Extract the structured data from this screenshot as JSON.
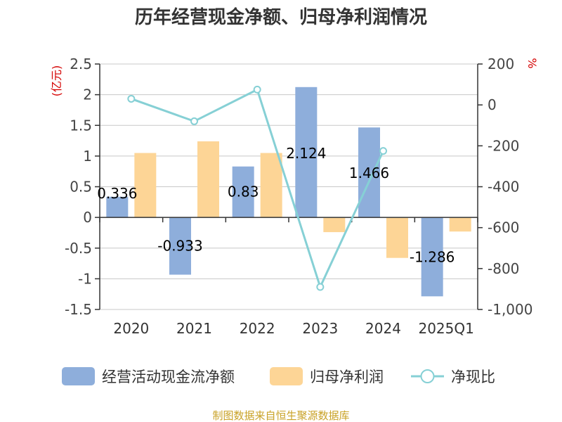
{
  "title": "历年经营现金净额、归母净利润情况",
  "source": "制图数据来自恒生聚源数据库",
  "chart_data": {
    "type": "bar",
    "categories": [
      "2020",
      "2021",
      "2022",
      "2023",
      "2024",
      "2025Q1"
    ],
    "left_axis": {
      "unit": "(亿元)",
      "ylim": [
        -1.5,
        2.5
      ],
      "ticks": [
        2.5,
        2,
        1.5,
        1,
        0.5,
        0,
        -0.5,
        -1,
        -1.5
      ],
      "tick_labels": [
        "2.5",
        "2",
        "1.5",
        "1",
        "0.5",
        "0",
        "-0.5",
        "-1",
        "-1.5"
      ]
    },
    "right_axis": {
      "unit": "%",
      "ylim": [
        -1000,
        200
      ],
      "ticks": [
        200,
        0,
        -200,
        -400,
        -600,
        -800,
        -1000
      ],
      "tick_labels": [
        "200",
        "0",
        "-200",
        "-400",
        "-600",
        "-800",
        "-1,000"
      ]
    },
    "grid": true,
    "legend_position": "bottom",
    "series": [
      {
        "name": "经营活动现金流净额",
        "kind": "bar",
        "axis": "left",
        "color": "#8eaedb",
        "values": [
          0.336,
          -0.933,
          0.83,
          2.124,
          1.466,
          -1.286
        ],
        "labels": [
          "0.336",
          "-0.933",
          "0.83",
          "2.124",
          "1.466",
          "-1.286"
        ]
      },
      {
        "name": "归母净利润",
        "kind": "bar",
        "axis": "left",
        "color": "#fdd596",
        "values": [
          1.05,
          1.24,
          1.05,
          -0.24,
          -0.66,
          -0.23
        ]
      },
      {
        "name": "净现比",
        "kind": "line",
        "axis": "right",
        "color": "#86d0d5",
        "values": [
          30,
          -80,
          75,
          -890,
          -225,
          null
        ]
      }
    ]
  }
}
